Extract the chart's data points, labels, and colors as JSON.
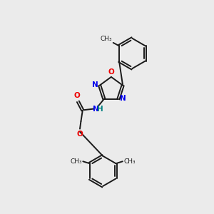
{
  "background_color": "#ebebeb",
  "bond_color": "#1a1a1a",
  "N_color": "#0000ee",
  "O_color": "#ee0000",
  "H_color": "#008080",
  "figsize": [
    3.0,
    3.0
  ],
  "dpi": 100,
  "xlim": [
    0,
    10
  ],
  "ylim": [
    0,
    10
  ]
}
